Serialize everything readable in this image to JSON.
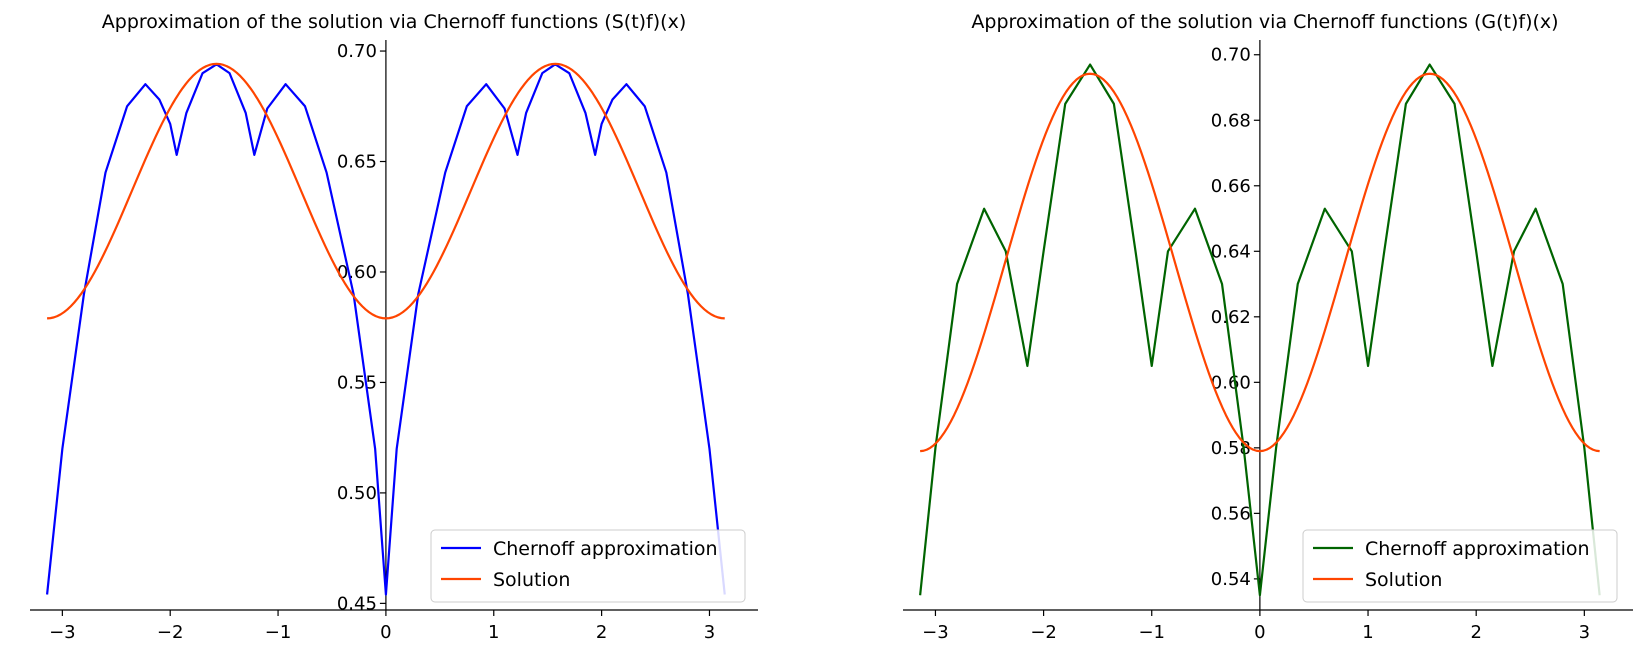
{
  "chart_data": [
    {
      "type": "line",
      "title": "Approximation of the solution via Chernoff functions (S(t)f)(x)",
      "xlabel": "",
      "ylabel": "",
      "xlim": [
        -3.3,
        3.45
      ],
      "ylim": [
        0.447,
        0.705
      ],
      "xticks": [
        -3,
        -2,
        -1,
        0,
        1,
        2,
        3
      ],
      "xtick_labels": [
        "−3",
        "−2",
        "−1",
        "0",
        "1",
        "2",
        "3"
      ],
      "yticks": [
        0.45,
        0.5,
        0.55,
        0.6,
        0.65,
        0.7
      ],
      "ytick_labels": [
        "0.45",
        "0.50",
        "0.55",
        "0.60",
        "0.65",
        "0.70"
      ],
      "legend_position": "lower-right",
      "series": [
        {
          "name": "Chernoff approximation",
          "color": "#0000ff",
          "x": [
            -3.1416,
            -3.0,
            -2.8,
            -2.6,
            -2.4,
            -2.23,
            -2.1,
            -2.0,
            -1.94,
            -1.85,
            -1.7,
            -1.57,
            -1.45,
            -1.3,
            -1.22,
            -1.1,
            -0.93,
            -0.75,
            -0.55,
            -0.3,
            -0.1,
            0.0,
            0.1,
            0.3,
            0.55,
            0.75,
            0.93,
            1.1,
            1.22,
            1.3,
            1.45,
            1.57,
            1.7,
            1.85,
            1.94,
            2.0,
            2.1,
            2.23,
            2.4,
            2.6,
            2.8,
            3.0,
            3.1416
          ],
          "y": [
            0.454,
            0.52,
            0.59,
            0.645,
            0.675,
            0.685,
            0.678,
            0.667,
            0.653,
            0.672,
            0.69,
            0.694,
            0.69,
            0.672,
            0.653,
            0.674,
            0.685,
            0.675,
            0.645,
            0.59,
            0.52,
            0.454,
            0.52,
            0.59,
            0.645,
            0.675,
            0.685,
            0.674,
            0.653,
            0.672,
            0.69,
            0.694,
            0.69,
            0.672,
            0.653,
            0.667,
            0.678,
            0.685,
            0.675,
            0.645,
            0.59,
            0.52,
            0.454
          ]
        },
        {
          "name": "Solution",
          "color": "#ff4500",
          "function": "0.6366+0.0576*cos(2*(x+pi/2))",
          "x_range": [
            -3.1416,
            3.1416
          ]
        }
      ]
    },
    {
      "type": "line",
      "title": "Approximation of the solution via Chernoff functions (G(t)f)(x)",
      "xlabel": "",
      "ylabel": "",
      "xlim": [
        -3.3,
        3.45
      ],
      "ylim": [
        0.5305,
        0.7045
      ],
      "xticks": [
        -3,
        -2,
        -1,
        0,
        1,
        2,
        3
      ],
      "xtick_labels": [
        "−3",
        "−2",
        "−1",
        "0",
        "1",
        "2",
        "3"
      ],
      "yticks": [
        0.54,
        0.56,
        0.58,
        0.6,
        0.62,
        0.64,
        0.66,
        0.68,
        0.7
      ],
      "ytick_labels": [
        "0.54",
        "0.56",
        "0.58",
        "0.60",
        "0.62",
        "0.64",
        "0.66",
        "0.68",
        "0.70"
      ],
      "legend_position": "lower-right",
      "series": [
        {
          "name": "Chernoff approximation",
          "color": "#006400",
          "x": [
            -3.1416,
            -3.0,
            -2.8,
            -2.55,
            -2.35,
            -2.15,
            -2.0,
            -1.8,
            -1.57,
            -1.35,
            -1.15,
            -1.0,
            -0.85,
            -0.6,
            -0.35,
            -0.15,
            0.0,
            0.15,
            0.35,
            0.6,
            0.85,
            1.0,
            1.15,
            1.35,
            1.57,
            1.8,
            2.0,
            2.15,
            2.35,
            2.55,
            2.8,
            3.0,
            3.1416
          ],
          "y": [
            0.535,
            0.58,
            0.63,
            0.653,
            0.64,
            0.605,
            0.64,
            0.685,
            0.697,
            0.685,
            0.64,
            0.605,
            0.64,
            0.653,
            0.63,
            0.58,
            0.535,
            0.58,
            0.63,
            0.653,
            0.64,
            0.605,
            0.64,
            0.685,
            0.697,
            0.685,
            0.64,
            0.605,
            0.64,
            0.653,
            0.63,
            0.58,
            0.535
          ]
        },
        {
          "name": "Solution",
          "color": "#ff4500",
          "function": "0.6366+0.0576*cos(2*(x+pi/2))",
          "x_range": [
            -3.1416,
            3.1416
          ]
        }
      ]
    }
  ]
}
